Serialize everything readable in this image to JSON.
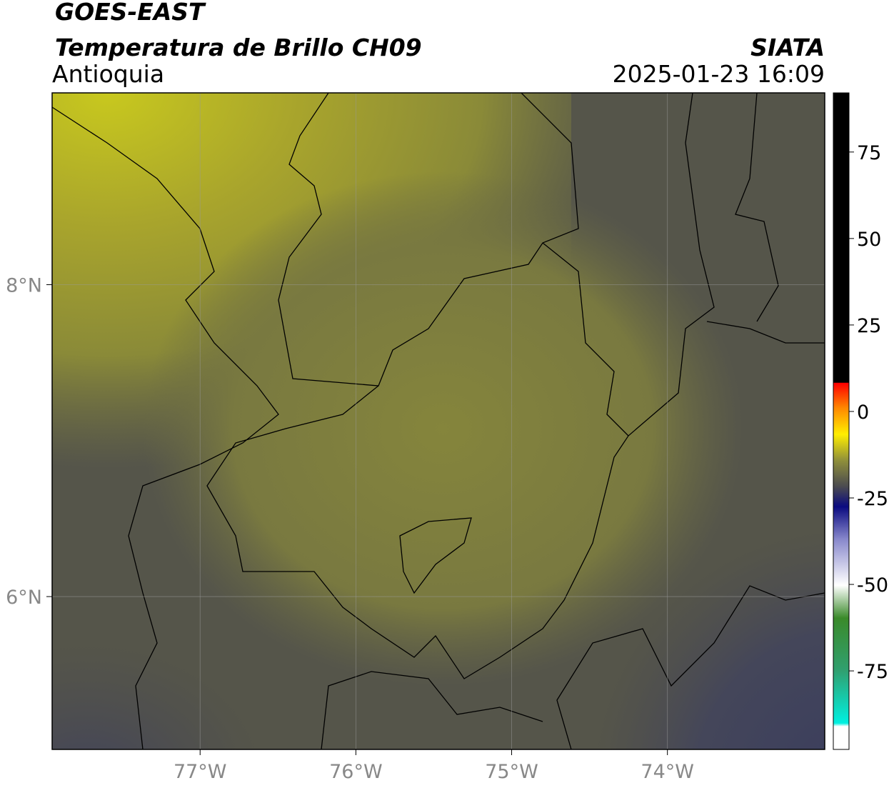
{
  "header": {
    "title": "GOES-EAST",
    "subtitle": "Temperatura de Brillo CH09",
    "region": "Antioquia",
    "source": "SIATA",
    "datetime": "2025-01-23 16:09"
  },
  "map": {
    "xlim": [
      -77.95,
      -72.99
    ],
    "ylim": [
      5.02,
      9.23
    ],
    "xticks": [
      {
        "value": -77,
        "label": "77°W"
      },
      {
        "value": -76,
        "label": "76°W"
      },
      {
        "value": -75,
        "label": "75°W"
      },
      {
        "value": -74,
        "label": "74°W"
      }
    ],
    "yticks": [
      {
        "value": 8,
        "label": "8°N"
      },
      {
        "value": 6,
        "label": "6°N"
      }
    ]
  },
  "colorbar": {
    "lim": [
      -97.7,
      92.1
    ],
    "ticks": [
      75,
      50,
      25,
      0,
      -25,
      -50,
      -75
    ]
  }
}
